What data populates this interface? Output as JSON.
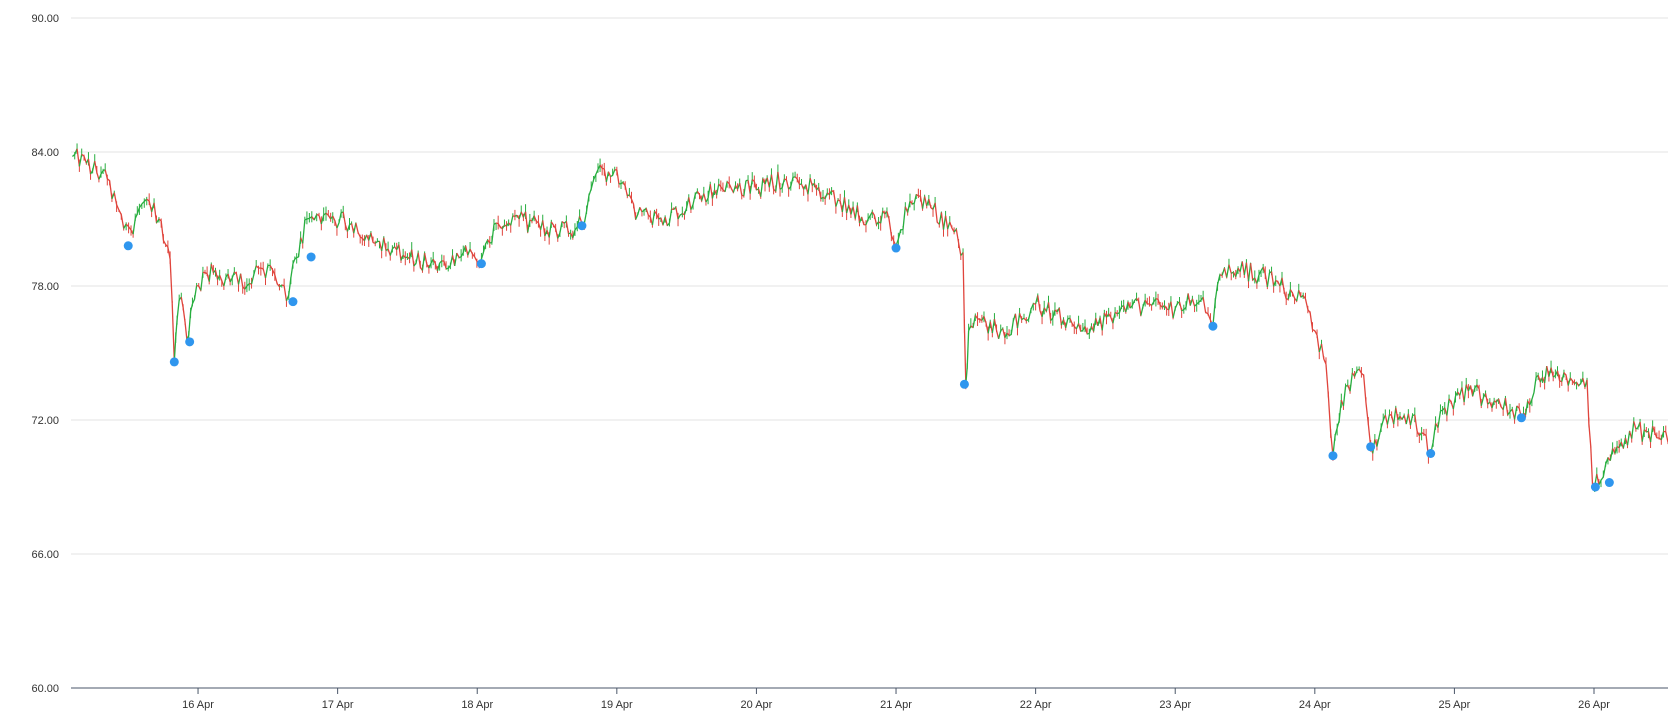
{
  "chart_data": {
    "type": "line",
    "title": "",
    "xlabel": "",
    "ylabel": "",
    "ylim": [
      60,
      90
    ],
    "y_ticks": [
      "60.00",
      "66.00",
      "72.00",
      "78.00",
      "84.00",
      "90.00"
    ],
    "x_ticks": [
      "16 Apr",
      "17 Apr",
      "18 Apr",
      "19 Apr",
      "20 Apr",
      "21 Apr",
      "22 Apr",
      "23 Apr",
      "24 Apr",
      "25 Apr",
      "26 Apr"
    ],
    "x_tick_days": [
      16,
      17,
      18,
      19,
      20,
      21,
      22,
      23,
      24,
      25,
      26
    ],
    "xlim_days": [
      15.09,
      26.53
    ],
    "grid": true,
    "colors": {
      "up": "#27ae3f",
      "down": "#e0443c",
      "marker": "#2f96ee",
      "grid": "#e3e3e3",
      "axis": "#4a5668"
    },
    "series": [
      {
        "x": [
          15.1,
          15.2,
          15.35,
          15.45,
          15.52,
          15.58,
          15.65,
          15.72,
          15.8,
          15.83,
          15.85,
          15.88,
          15.92,
          15.96,
          16.05,
          16.2,
          16.35,
          16.45,
          16.55,
          16.65,
          16.68,
          16.72,
          16.78,
          16.85,
          16.95,
          17.1,
          17.3,
          17.5,
          17.7,
          17.9,
          18.03,
          18.15,
          18.3,
          18.5,
          18.7,
          18.75,
          18.85,
          19.0,
          19.15,
          19.3,
          19.5,
          19.7,
          19.85,
          20.0,
          20.2,
          20.4,
          20.6,
          20.8,
          20.95,
          21.0,
          21.1,
          21.25,
          21.4,
          21.48,
          21.5,
          21.52,
          21.6,
          21.75,
          21.9,
          22.0,
          22.2,
          22.4,
          22.6,
          22.8,
          23.0,
          23.2,
          23.27,
          23.32,
          23.45,
          23.6,
          23.75,
          23.9,
          24.0,
          24.08,
          24.13,
          24.22,
          24.35,
          24.4,
          24.55,
          24.7,
          24.83,
          24.9,
          25.1,
          25.3,
          25.48,
          25.6,
          25.8,
          25.95,
          25.99,
          26.05,
          26.15,
          26.3,
          26.45,
          26.53
        ],
        "y": [
          83.8,
          83.5,
          82.8,
          81.2,
          80.5,
          81.5,
          81.8,
          81.0,
          79.2,
          74.6,
          76.5,
          77.5,
          75.6,
          77.2,
          78.6,
          78.4,
          78.0,
          78.8,
          78.5,
          77.6,
          79.0,
          79.3,
          81.0,
          81.2,
          81.0,
          80.8,
          80.0,
          79.3,
          79.0,
          79.5,
          79.2,
          80.8,
          81.0,
          80.5,
          80.5,
          80.8,
          83.0,
          83.2,
          81.2,
          81.0,
          81.5,
          82.3,
          82.5,
          82.3,
          82.8,
          82.5,
          81.8,
          81.0,
          81.0,
          79.8,
          81.8,
          81.5,
          80.6,
          79.5,
          73.6,
          76.0,
          76.5,
          76.0,
          76.5,
          77.2,
          76.5,
          76.2,
          76.8,
          77.2,
          77.0,
          77.5,
          76.2,
          78.5,
          78.8,
          78.5,
          78.0,
          77.5,
          76.0,
          74.5,
          70.4,
          73.5,
          74.0,
          70.8,
          72.2,
          72.2,
          70.5,
          72.4,
          73.3,
          72.8,
          72.1,
          74.0,
          74.0,
          73.8,
          69.0,
          69.3,
          70.5,
          71.6,
          71.2,
          71.0
        ],
        "color": "#27ae3f"
      }
    ],
    "markers": [
      {
        "x": 15.5,
        "y": 79.8
      },
      {
        "x": 15.83,
        "y": 74.6
      },
      {
        "x": 15.94,
        "y": 75.5
      },
      {
        "x": 16.68,
        "y": 77.3
      },
      {
        "x": 16.81,
        "y": 79.3
      },
      {
        "x": 18.03,
        "y": 79.0
      },
      {
        "x": 18.75,
        "y": 80.7
      },
      {
        "x": 21.0,
        "y": 79.7
      },
      {
        "x": 21.49,
        "y": 73.6
      },
      {
        "x": 23.27,
        "y": 76.2
      },
      {
        "x": 24.13,
        "y": 70.4
      },
      {
        "x": 24.4,
        "y": 70.8
      },
      {
        "x": 24.83,
        "y": 70.5
      },
      {
        "x": 25.48,
        "y": 72.1
      },
      {
        "x": 26.01,
        "y": 69.0
      },
      {
        "x": 26.11,
        "y": 69.2
      }
    ]
  }
}
